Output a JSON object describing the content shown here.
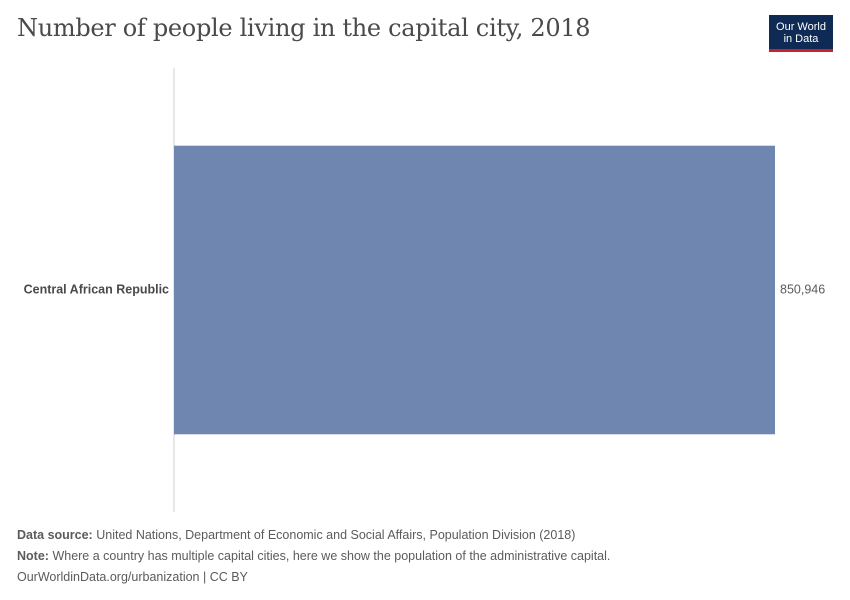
{
  "header": {
    "title": "Number of people living in the capital city, 2018",
    "logo_line1": "Our World",
    "logo_line2": "in Data"
  },
  "chart_data": {
    "type": "bar",
    "orientation": "horizontal",
    "categories": [
      "Central African Republic"
    ],
    "values": [
      850946
    ],
    "value_labels": [
      "850,946"
    ],
    "xlim": [
      0,
      850946
    ],
    "bar_color": "#6f87b0",
    "grid": false
  },
  "footer": {
    "source_label": "Data source:",
    "source_text": "United Nations, Department of Economic and Social Affairs, Population Division (2018)",
    "note_label": "Note:",
    "note_text": "Where a country has multiple capital cities, here we show the population of the administrative capital.",
    "url_text": "OurWorldinData.org/urbanization | CC BY"
  }
}
